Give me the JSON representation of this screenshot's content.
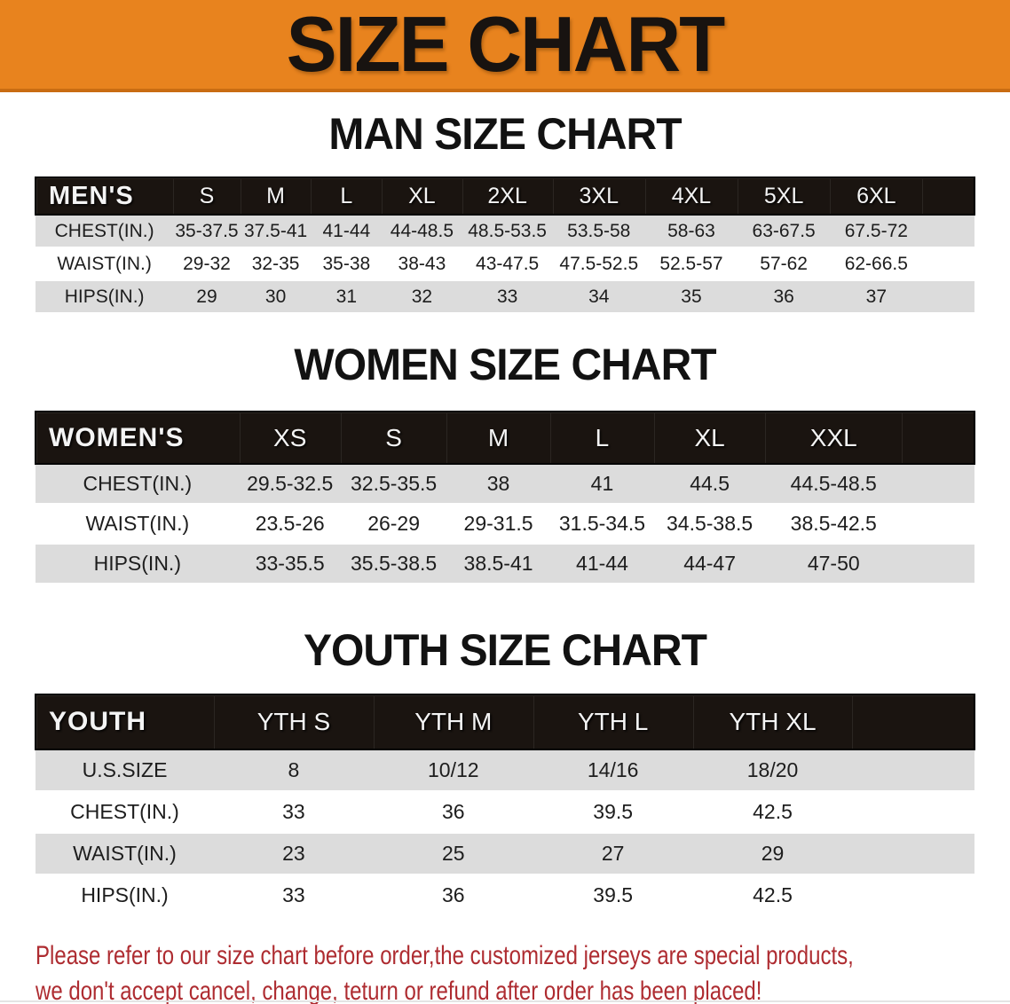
{
  "banner": {
    "title": "SIZE CHART",
    "bg_color": "#E8831E",
    "edge_color": "#C96C12"
  },
  "chart_data": [
    {
      "type": "table",
      "id": "men",
      "title": "MAN SIZE CHART",
      "corner_label": "MEN'S",
      "columns": [
        "S",
        "M",
        "L",
        "XL",
        "2XL",
        "3XL",
        "4XL",
        "5XL",
        "6XL"
      ],
      "rows": [
        {
          "label": "CHEST(IN.)",
          "values": [
            "35-37.5",
            "37.5-41",
            "41-44",
            "44-48.5",
            "48.5-53.5",
            "53.5-58",
            "58-63",
            "63-67.5",
            "67.5-72"
          ]
        },
        {
          "label": "WAIST(IN.)",
          "values": [
            "29-32",
            "32-35",
            "35-38",
            "38-43",
            "43-47.5",
            "47.5-52.5",
            "52.5-57",
            "57-62",
            "62-66.5"
          ]
        },
        {
          "label": "HIPS(IN.)",
          "values": [
            "29",
            "30",
            "31",
            "32",
            "33",
            "34",
            "35",
            "36",
            "37"
          ]
        }
      ]
    },
    {
      "type": "table",
      "id": "women",
      "title": "WOMEN SIZE CHART",
      "corner_label": "WOMEN'S",
      "columns": [
        "XS",
        "S",
        "M",
        "L",
        "XL",
        "XXL"
      ],
      "rows": [
        {
          "label": "CHEST(IN.)",
          "values": [
            "29.5-32.5",
            "32.5-35.5",
            "38",
            "41",
            "44.5",
            "44.5-48.5"
          ]
        },
        {
          "label": "WAIST(IN.)",
          "values": [
            "23.5-26",
            "26-29",
            "29-31.5",
            "31.5-34.5",
            "34.5-38.5",
            "38.5-42.5"
          ]
        },
        {
          "label": "HIPS(IN.)",
          "values": [
            "33-35.5",
            "35.5-38.5",
            "38.5-41",
            "41-44",
            "44-47",
            "47-50"
          ]
        }
      ]
    },
    {
      "type": "table",
      "id": "youth",
      "title": "YOUTH SIZE CHART",
      "corner_label": "YOUTH",
      "columns": [
        "YTH S",
        "YTH M",
        "YTH L",
        "YTH XL"
      ],
      "rows": [
        {
          "label": "U.S.SIZE",
          "values": [
            "8",
            "10/12",
            "14/16",
            "18/20"
          ]
        },
        {
          "label": "CHEST(IN.)",
          "values": [
            "33",
            "36",
            "39.5",
            "42.5"
          ]
        },
        {
          "label": "WAIST(IN.)",
          "values": [
            "23",
            "25",
            "27",
            "29"
          ]
        },
        {
          "label": "HIPS(IN.)",
          "values": [
            "33",
            "36",
            "39.5",
            "42.5"
          ]
        }
      ]
    }
  ],
  "footer_note": {
    "line1": "Please refer to our size chart before order,the customized jerseys are special products,",
    "line2": "we don't accept cancel, change, teturn or refund after order has been placed!",
    "color": "#AE2C31"
  },
  "colors": {
    "table_header_bg": "#1A1410",
    "table_header_text": "#F4F4F4",
    "row_gray": "#DCDCDC",
    "row_white": "#FFFFFF",
    "body_text": "#1D1D1D",
    "heading_text": "#121212"
  }
}
